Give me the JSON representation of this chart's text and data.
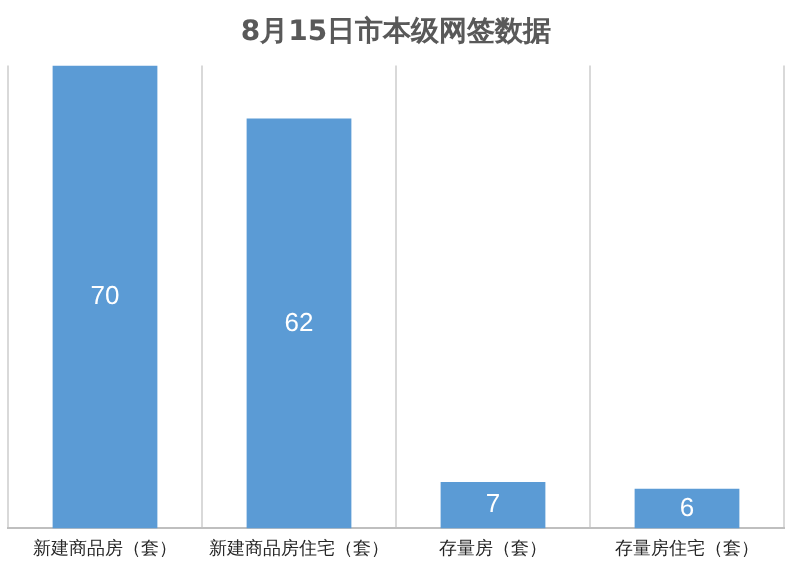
{
  "chart_data": {
    "type": "bar",
    "title": "8月15日市本级网签数据",
    "categories": [
      "新建商品房（套）",
      "新建商品房住宅（套）",
      "存量房（套）",
      "存量房住宅（套）"
    ],
    "values": [
      70,
      62,
      7,
      6
    ],
    "color": "#5b9bd5",
    "data_labels": true,
    "grid": "x"
  }
}
